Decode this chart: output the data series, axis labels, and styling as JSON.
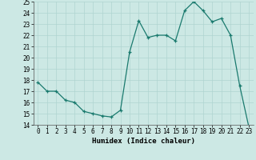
{
  "x": [
    0,
    1,
    2,
    3,
    4,
    5,
    6,
    7,
    8,
    9,
    10,
    11,
    12,
    13,
    14,
    15,
    16,
    17,
    18,
    19,
    20,
    21,
    22,
    23
  ],
  "y": [
    17.8,
    17.0,
    17.0,
    16.2,
    16.0,
    15.2,
    15.0,
    14.8,
    14.7,
    15.3,
    20.5,
    23.3,
    21.8,
    22.0,
    22.0,
    21.5,
    24.2,
    25.0,
    24.2,
    23.2,
    23.5,
    22.0,
    17.5,
    13.8
  ],
  "xlabel": "Humidex (Indice chaleur)",
  "ylim": [
    14,
    25
  ],
  "xlim": [
    -0.5,
    23.5
  ],
  "yticks": [
    14,
    15,
    16,
    17,
    18,
    19,
    20,
    21,
    22,
    23,
    24,
    25
  ],
  "xticks": [
    0,
    1,
    2,
    3,
    4,
    5,
    6,
    7,
    8,
    9,
    10,
    11,
    12,
    13,
    14,
    15,
    16,
    17,
    18,
    19,
    20,
    21,
    22,
    23
  ],
  "line_color": "#1a7a6e",
  "marker_color": "#1a7a6e",
  "bg_color": "#cce8e4",
  "grid_color": "#b0d4d0",
  "axis_fontsize": 6.5,
  "tick_fontsize": 5.5
}
